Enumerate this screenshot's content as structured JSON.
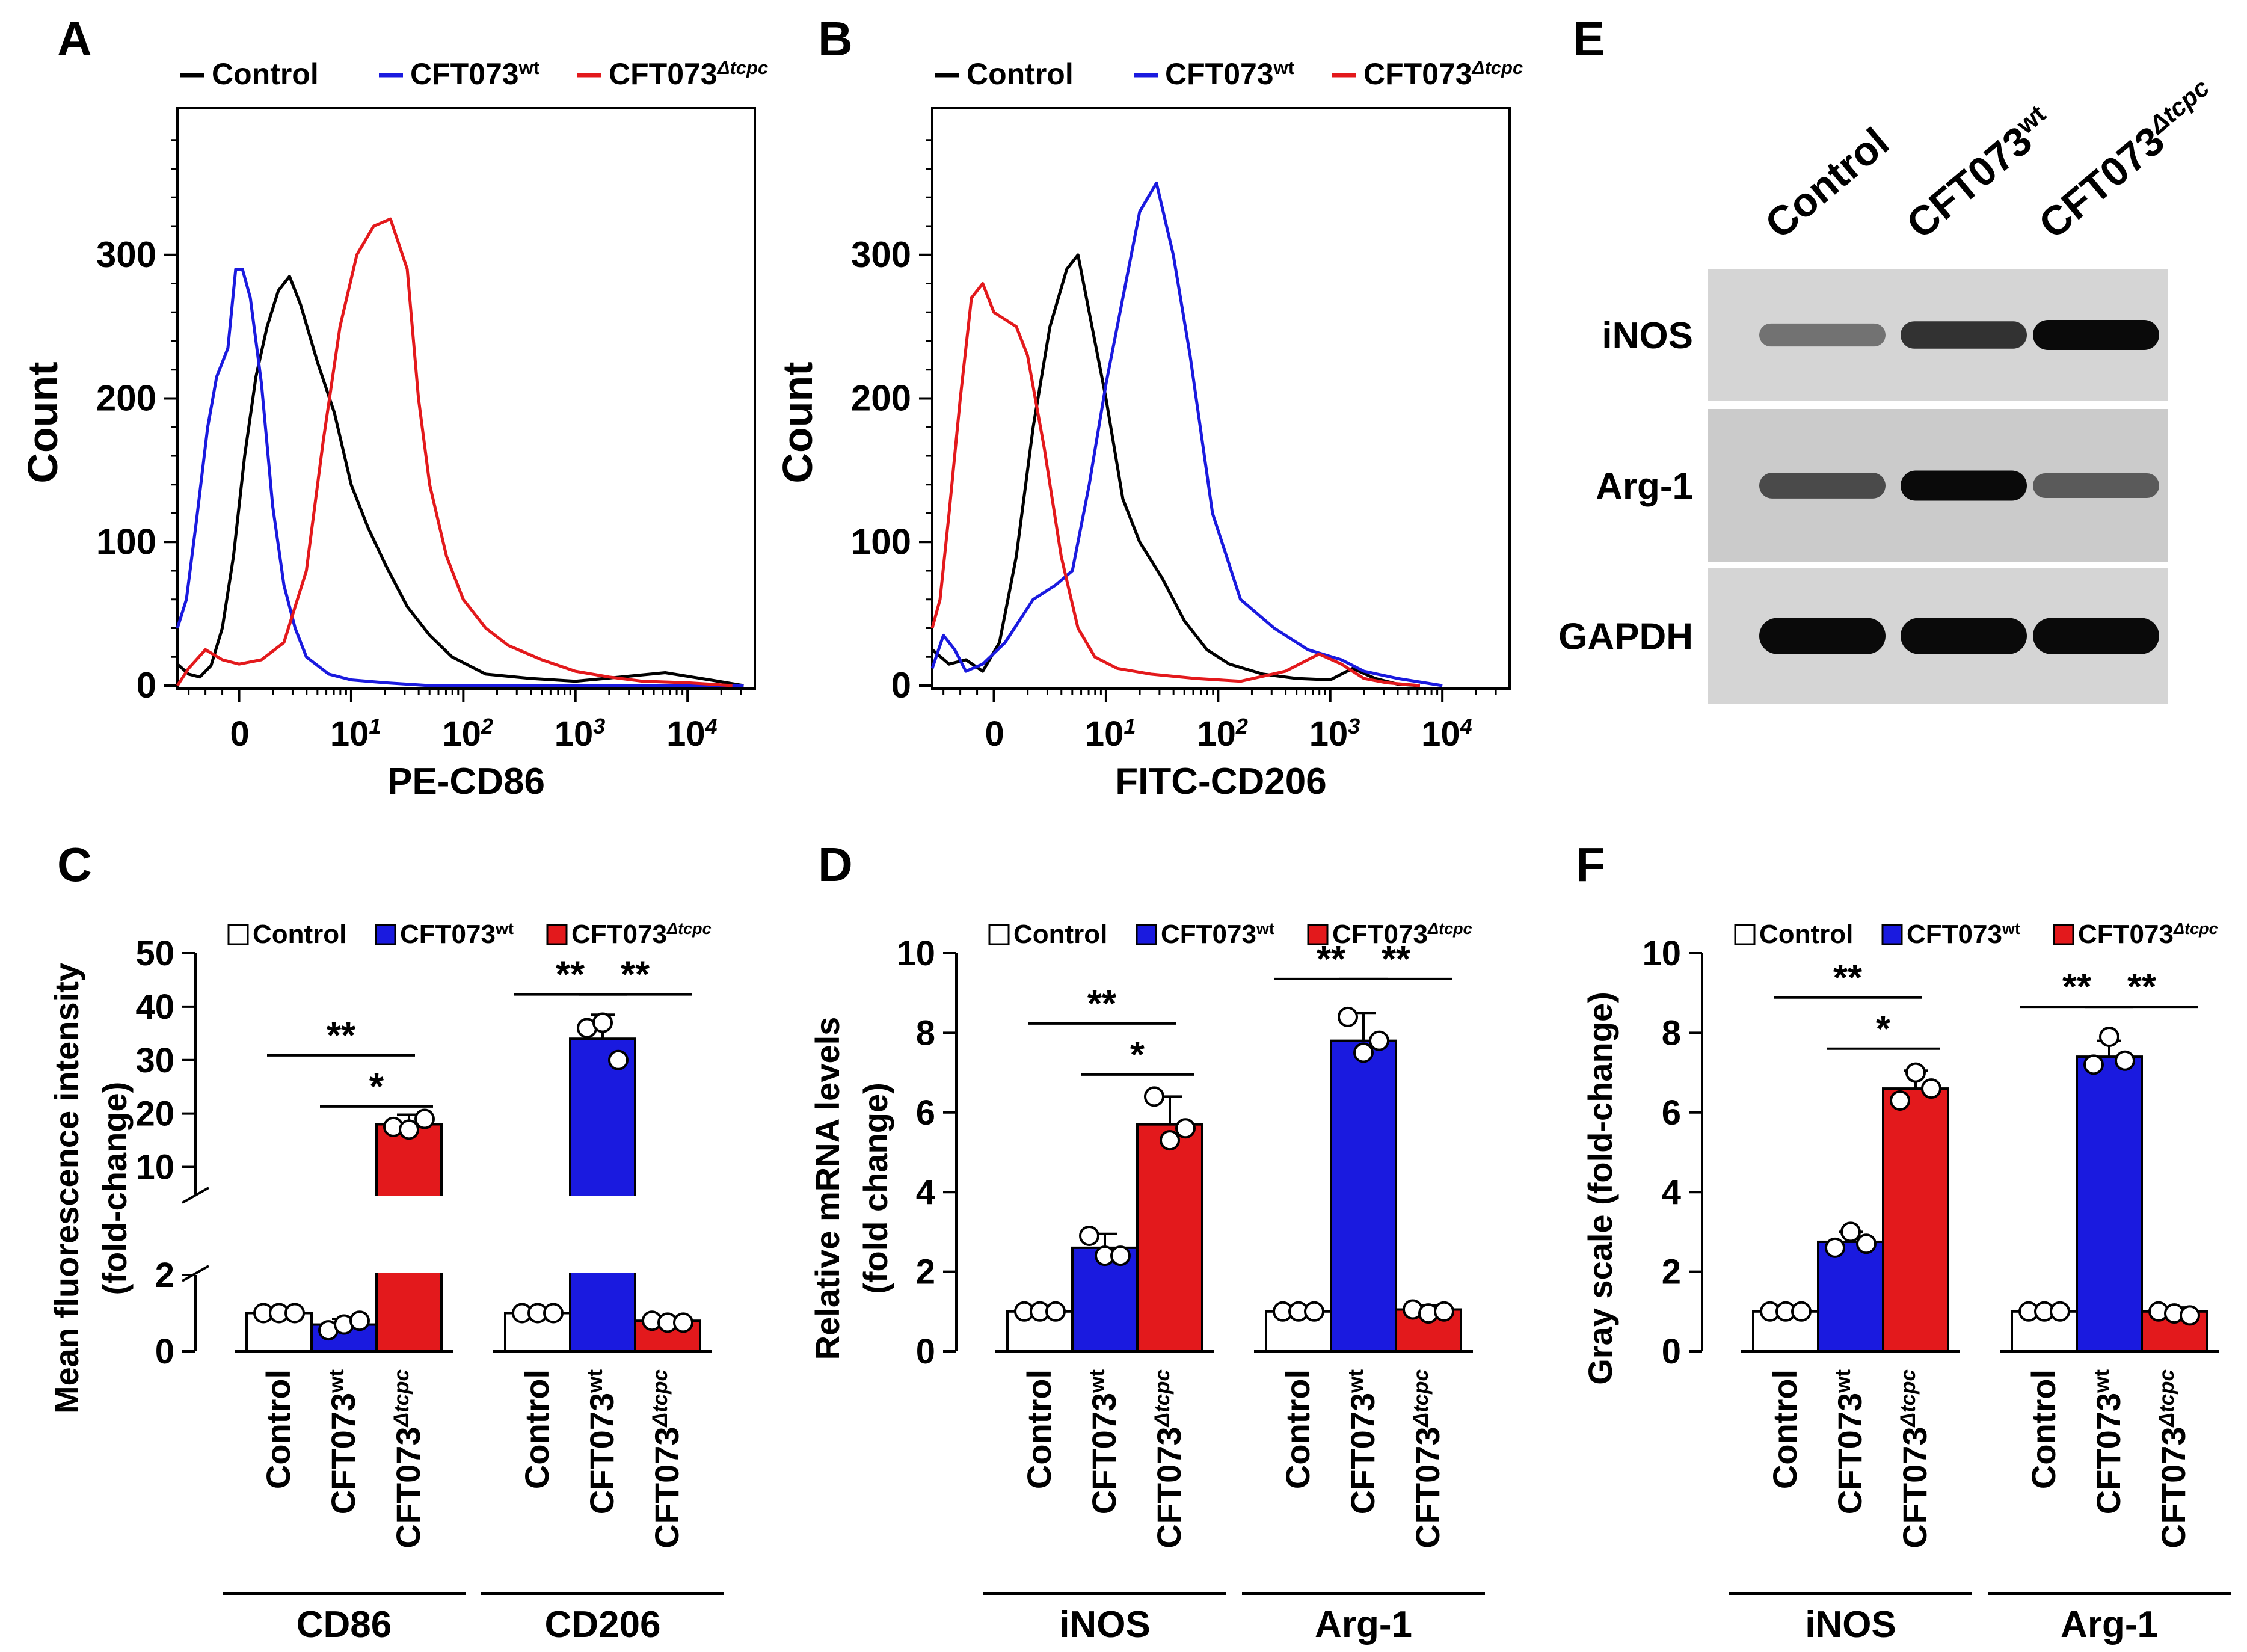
{
  "colors": {
    "control": "#000000",
    "wt": "#1a1adf",
    "mut": "#e3191c"
  },
  "legend": {
    "control": "Control",
    "wt_base": "CFT073",
    "wt_sup": "wt",
    "mut_base": "CFT073",
    "mut_sup": "Δtcpc"
  },
  "chart_data": [
    {
      "panel": "A",
      "type": "line",
      "xlabel": "PE-CD86",
      "ylabel": "Count",
      "ylim": [
        0,
        400
      ],
      "yticks": [
        "0",
        "100",
        "200",
        "300"
      ],
      "xticks": [
        "0",
        "10",
        "10",
        "10",
        "10"
      ],
      "xtick_exp": [
        "",
        "1",
        "2",
        "3",
        "4"
      ],
      "xlim": [
        -0.55,
        4.6
      ],
      "series": [
        {
          "name": "Control",
          "key": "control",
          "x": [
            -0.55,
            -0.45,
            -0.35,
            -0.25,
            -0.15,
            -0.05,
            0.05,
            0.15,
            0.25,
            0.35,
            0.45,
            0.55,
            0.7,
            0.85,
            1.0,
            1.15,
            1.3,
            1.5,
            1.7,
            1.9,
            2.2,
            2.6,
            3.0,
            3.4,
            3.8,
            4.2,
            4.5
          ],
          "y": [
            15,
            8,
            6,
            14,
            40,
            90,
            160,
            215,
            250,
            275,
            285,
            265,
            225,
            190,
            140,
            110,
            85,
            55,
            35,
            20,
            8,
            5,
            3,
            6,
            9,
            4,
            0
          ]
        },
        {
          "name": "CFT073wt",
          "key": "wt",
          "x": [
            -0.55,
            -0.47,
            -0.38,
            -0.28,
            -0.2,
            -0.15,
            -0.1,
            -0.03,
            0.03,
            0.1,
            0.2,
            0.3,
            0.4,
            0.5,
            0.6,
            0.8,
            1.0,
            1.3,
            1.7,
            2.2,
            2.8,
            3.4,
            4.0,
            4.5
          ],
          "y": [
            40,
            60,
            115,
            180,
            215,
            225,
            235,
            290,
            290,
            270,
            210,
            125,
            70,
            40,
            20,
            8,
            4,
            2,
            0,
            0,
            0,
            0,
            0,
            0
          ]
        },
        {
          "name": "CFT073Δtcpc",
          "key": "mut",
          "x": [
            -0.55,
            -0.45,
            -0.3,
            -0.15,
            0.0,
            0.2,
            0.4,
            0.6,
            0.75,
            0.9,
            1.05,
            1.2,
            1.35,
            1.5,
            1.6,
            1.7,
            1.85,
            2.0,
            2.2,
            2.4,
            2.7,
            3.0,
            3.3,
            3.6,
            4.0,
            4.4
          ],
          "y": [
            0,
            12,
            25,
            18,
            15,
            18,
            30,
            80,
            170,
            250,
            300,
            320,
            325,
            290,
            200,
            140,
            90,
            60,
            40,
            28,
            18,
            10,
            6,
            3,
            2,
            0
          ]
        }
      ]
    },
    {
      "panel": "B",
      "type": "line",
      "xlabel": "FITC-CD206",
      "ylabel": "Count",
      "ylim": [
        0,
        400
      ],
      "yticks": [
        "0",
        "100",
        "200",
        "300"
      ],
      "xticks": [
        "0",
        "10",
        "10",
        "10",
        "10"
      ],
      "xtick_exp": [
        "",
        "1",
        "2",
        "3",
        "4"
      ],
      "xlim": [
        -0.55,
        4.6
      ],
      "series": [
        {
          "name": "Control",
          "key": "control",
          "x": [
            -0.55,
            -0.4,
            -0.25,
            -0.1,
            0.05,
            0.2,
            0.35,
            0.5,
            0.65,
            0.75,
            0.85,
            1.0,
            1.15,
            1.3,
            1.5,
            1.7,
            1.9,
            2.1,
            2.4,
            2.7,
            3.0,
            3.2,
            3.4,
            3.6,
            3.8
          ],
          "y": [
            25,
            15,
            18,
            10,
            30,
            90,
            180,
            250,
            290,
            300,
            260,
            200,
            130,
            100,
            75,
            45,
            25,
            15,
            8,
            5,
            4,
            12,
            5,
            1,
            0
          ]
        },
        {
          "name": "CFT073wt",
          "key": "wt",
          "x": [
            -0.55,
            -0.45,
            -0.35,
            -0.25,
            -0.1,
            0.1,
            0.35,
            0.55,
            0.7,
            0.85,
            1.0,
            1.15,
            1.3,
            1.45,
            1.6,
            1.75,
            1.95,
            2.2,
            2.5,
            2.8,
            3.1,
            3.3,
            3.6,
            4.0
          ],
          "y": [
            12,
            35,
            25,
            10,
            15,
            30,
            60,
            70,
            80,
            140,
            210,
            270,
            330,
            350,
            300,
            230,
            120,
            60,
            40,
            25,
            18,
            10,
            5,
            0
          ]
        },
        {
          "name": "CFT073Δtcpc",
          "key": "mut",
          "x": [
            -0.55,
            -0.48,
            -0.4,
            -0.3,
            -0.2,
            -0.1,
            0.0,
            0.1,
            0.2,
            0.3,
            0.45,
            0.6,
            0.75,
            0.9,
            1.1,
            1.4,
            1.8,
            2.2,
            2.6,
            2.9,
            3.1,
            3.3,
            3.5,
            3.8
          ],
          "y": [
            40,
            60,
            120,
            200,
            270,
            280,
            260,
            255,
            250,
            230,
            165,
            90,
            40,
            20,
            12,
            8,
            5,
            3,
            10,
            22,
            15,
            5,
            2,
            0
          ]
        }
      ]
    },
    {
      "panel": "C",
      "type": "bar",
      "ylabel_lines": [
        "Mean fluorescence intensity",
        "(fold-change)"
      ],
      "yticks_low": [
        "0",
        "2"
      ],
      "yticks_high": [
        "10",
        "20",
        "30",
        "40",
        "50"
      ],
      "broken_axis": {
        "lower": [
          0,
          2
        ],
        "upper": [
          5,
          50
        ]
      },
      "groups": [
        {
          "label": "CD86",
          "bars": [
            {
              "key": "control",
              "label": "Control",
              "mean": 1.0,
              "sd": 0,
              "points": [
                1.0,
                1.0,
                1.0
              ]
            },
            {
              "key": "wt",
              "label": "CFT073wt",
              "mean": 0.7,
              "sd": 0.15,
              "points": [
                0.55,
                0.7,
                0.8
              ]
            },
            {
              "key": "mut",
              "label": "CFT073Δtcpc",
              "mean": 18.0,
              "sd": 1.8,
              "points": [
                17.5,
                17.0,
                19.0
              ]
            }
          ],
          "sig": [
            {
              "from": 0,
              "to": 2,
              "label": "**"
            },
            {
              "from": 1,
              "to": 2,
              "label": "*"
            }
          ]
        },
        {
          "label": "CD206",
          "bars": [
            {
              "key": "control",
              "label": "Control",
              "mean": 1.0,
              "sd": 0,
              "points": [
                1.0,
                1.0,
                1.0
              ]
            },
            {
              "key": "wt",
              "label": "CFT073wt",
              "mean": 34.0,
              "sd": 4.5,
              "points": [
                36.0,
                37.0,
                30.0
              ]
            },
            {
              "key": "mut",
              "label": "CFT073Δtcpc",
              "mean": 0.8,
              "sd": 0.1,
              "points": [
                0.8,
                0.75,
                0.75
              ]
            }
          ],
          "sig": [
            {
              "from": 0,
              "to": 1,
              "label": "**"
            },
            {
              "from": 1,
              "to": 2,
              "label": "**"
            }
          ]
        }
      ]
    },
    {
      "panel": "D",
      "type": "bar",
      "ylabel_lines": [
        "Relative mRNA levels",
        "(fold change)"
      ],
      "ylim": [
        0,
        10
      ],
      "yticks": [
        "0",
        "2",
        "4",
        "6",
        "8",
        "10"
      ],
      "groups": [
        {
          "label": "iNOS",
          "bars": [
            {
              "key": "control",
              "label": "Control",
              "mean": 1.0,
              "sd": 0,
              "points": [
                1.0,
                1.0,
                1.0
              ]
            },
            {
              "key": "wt",
              "label": "CFT073wt",
              "mean": 2.6,
              "sd": 0.35,
              "points": [
                2.9,
                2.4,
                2.4
              ]
            },
            {
              "key": "mut",
              "label": "CFT073Δtcpc",
              "mean": 5.7,
              "sd": 0.7,
              "points": [
                6.4,
                5.3,
                5.6
              ]
            }
          ],
          "sig": [
            {
              "from": 0,
              "to": 2,
              "label": "**"
            },
            {
              "from": 1,
              "to": 2,
              "label": "*"
            }
          ]
        },
        {
          "label": "Arg-1",
          "bars": [
            {
              "key": "control",
              "label": "Control",
              "mean": 1.0,
              "sd": 0,
              "points": [
                1.0,
                1.0,
                1.0
              ]
            },
            {
              "key": "wt",
              "label": "CFT073wt",
              "mean": 7.8,
              "sd": 0.7,
              "points": [
                8.4,
                7.5,
                7.8
              ]
            },
            {
              "key": "mut",
              "label": "CFT073Δtcpc",
              "mean": 1.05,
              "sd": 0.1,
              "points": [
                1.05,
                0.95,
                1.0
              ]
            }
          ],
          "sig": [
            {
              "from": 0,
              "to": 1,
              "label": "**"
            },
            {
              "from": 1,
              "to": 2,
              "label": "**"
            }
          ]
        }
      ]
    },
    {
      "panel": "F",
      "type": "bar",
      "ylabel_lines": [
        "Gray scale (fold-change)"
      ],
      "ylim": [
        0,
        10
      ],
      "yticks": [
        "0",
        "2",
        "4",
        "6",
        "8",
        "10"
      ],
      "groups": [
        {
          "label": "iNOS",
          "bars": [
            {
              "key": "control",
              "label": "Control",
              "mean": 1.0,
              "sd": 0,
              "points": [
                1.0,
                1.0,
                1.0
              ]
            },
            {
              "key": "wt",
              "label": "CFT073wt",
              "mean": 2.75,
              "sd": 0.25,
              "points": [
                2.6,
                3.0,
                2.7
              ]
            },
            {
              "key": "mut",
              "label": "CFT073Δtcpc",
              "mean": 6.6,
              "sd": 0.45,
              "points": [
                6.3,
                7.0,
                6.6
              ]
            }
          ],
          "sig": [
            {
              "from": 0,
              "to": 2,
              "label": "**"
            },
            {
              "from": 1,
              "to": 2,
              "label": "*"
            }
          ]
        },
        {
          "label": "Arg-1",
          "bars": [
            {
              "key": "control",
              "label": "Control",
              "mean": 1.0,
              "sd": 0,
              "points": [
                1.0,
                1.0,
                1.0
              ]
            },
            {
              "key": "wt",
              "label": "CFT073wt",
              "mean": 7.4,
              "sd": 0.4,
              "points": [
                7.2,
                7.9,
                7.3
              ]
            },
            {
              "key": "mut",
              "label": "CFT073Δtcpc",
              "mean": 1.0,
              "sd": 0.1,
              "points": [
                1.0,
                0.95,
                0.9
              ]
            }
          ],
          "sig": [
            {
              "from": 0,
              "to": 1,
              "label": "**"
            },
            {
              "from": 1,
              "to": 2,
              "label": "**"
            }
          ]
        }
      ]
    }
  ],
  "blot": {
    "panel": "E",
    "lanes": [
      {
        "base": "Control",
        "sup": ""
      },
      {
        "base": "CFT073",
        "sup": "wt"
      },
      {
        "base": "CFT073",
        "sup": "Δtcpc"
      }
    ],
    "rows": [
      {
        "label": "iNOS",
        "intensity": [
          0.35,
          0.75,
          1.0
        ]
      },
      {
        "label": "Arg-1",
        "intensity": [
          0.6,
          1.0,
          0.5
        ]
      },
      {
        "label": "GAPDH",
        "intensity": [
          1.0,
          1.0,
          1.0
        ]
      }
    ]
  }
}
